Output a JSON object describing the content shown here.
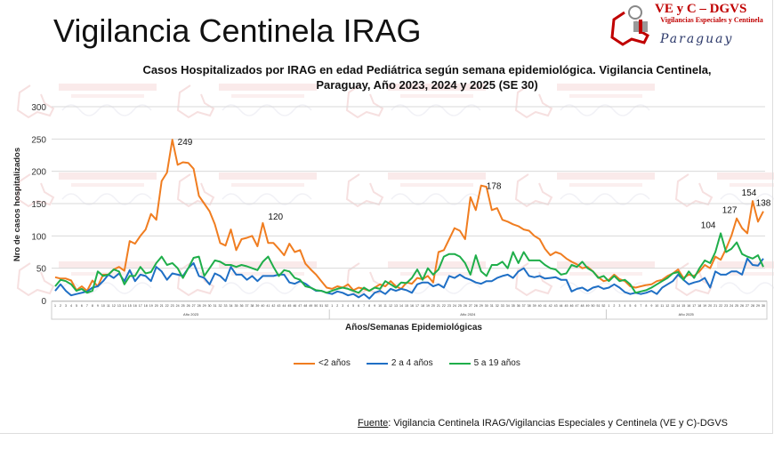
{
  "header": {
    "title": "Vigilancia Centinela IRAG",
    "logo": {
      "line1": "VE y C – DGVS",
      "line2": "Vigilancias Especiales y Centinela",
      "line3": "Paraguay"
    }
  },
  "watermark": "VE y C – DGVS",
  "source": {
    "label": "Fuente",
    "text": ": Vigilancia  Centinela IRAG/Vigilancias Especiales y Centinela (VE y C)-DGVS"
  },
  "chart_data": {
    "type": "line",
    "title": "Casos Hospitalizados por IRAG en edad Pediátrica según semana epidemiológica. Vigilancia Centinela, Paraguay, Año 2023, 2024 y 2025 (SE 30)",
    "xlabel": "Años/Semanas Epidemiológicas",
    "ylabel": "Nro de casos hospitalizados",
    "ylim": [
      0,
      300
    ],
    "yticks": [
      0,
      50,
      100,
      150,
      200,
      250,
      300
    ],
    "grid": true,
    "legend_position": "bottom",
    "years": [
      {
        "label": "Año 2023",
        "weeks": 52
      },
      {
        "label": "Año 2024",
        "weeks": 52
      },
      {
        "label": "Año 2025",
        "weeks": 30
      }
    ],
    "series": [
      {
        "name": "<2  años",
        "color": "#f07d20",
        "values": [
          36,
          34,
          34,
          31,
          16,
          22,
          15,
          31,
          22,
          40,
          40,
          48,
          52,
          46,
          92,
          88,
          100,
          110,
          134,
          125,
          185,
          198,
          249,
          210,
          214,
          213,
          204,
          162,
          150,
          138,
          118,
          89,
          85,
          110,
          78,
          95,
          97,
          100,
          84,
          120,
          89,
          89,
          80,
          70,
          88,
          75,
          78,
          57,
          48,
          40,
          30,
          20,
          18,
          22,
          20,
          25,
          16,
          20,
          18,
          15,
          20,
          25,
          22,
          30,
          22,
          18,
          28,
          26,
          35,
          33,
          38,
          28,
          75,
          78,
          95,
          112,
          108,
          95,
          160,
          140,
          178,
          176,
          140,
          143,
          125,
          122,
          118,
          115,
          110,
          108,
          100,
          95,
          80,
          70,
          75,
          72,
          65,
          60,
          56,
          50,
          52,
          45,
          36,
          30,
          32,
          40,
          33,
          30,
          22,
          20,
          22,
          24,
          25,
          30,
          32,
          38,
          42,
          48,
          35,
          40,
          38,
          45,
          55,
          50,
          68,
          63,
          80,
          100,
          127,
          112,
          104,
          154,
          122,
          138
        ],
        "labels": {
          "22": 249,
          "39": 120,
          "80": 178,
          "128": 127,
          "131": 154,
          "133": 138
        }
      },
      {
        "name": "2 a 4 años",
        "color": "#1f6fc5",
        "values": [
          15,
          25,
          15,
          8,
          10,
          12,
          14,
          20,
          22,
          30,
          40,
          35,
          42,
          30,
          47,
          30,
          40,
          38,
          30,
          52,
          45,
          32,
          42,
          40,
          38,
          50,
          58,
          38,
          35,
          25,
          42,
          38,
          30,
          52,
          40,
          40,
          32,
          38,
          30,
          38,
          38,
          38,
          40,
          40,
          28,
          26,
          30,
          26,
          20,
          15,
          15,
          12,
          10,
          14,
          12,
          8,
          10,
          5,
          10,
          3,
          12,
          15,
          10,
          18,
          15,
          18,
          16,
          12,
          25,
          28,
          28,
          22,
          25,
          20,
          38,
          35,
          40,
          35,
          32,
          28,
          26,
          30,
          30,
          35,
          38,
          40,
          35,
          45,
          50,
          38,
          36,
          38,
          34,
          35,
          36,
          32,
          32,
          14,
          18,
          20,
          15,
          20,
          22,
          18,
          20,
          25,
          20,
          13,
          10,
          12,
          10,
          12,
          15,
          10,
          20,
          25,
          30,
          40,
          32,
          25,
          28,
          30,
          35,
          20,
          45,
          40,
          40,
          45,
          45,
          40,
          65,
          55,
          54,
          65
        ],
        "labels": {}
      },
      {
        "name": "5 a 19 años",
        "color": "#1fae4a",
        "values": [
          22,
          32,
          30,
          25,
          15,
          18,
          12,
          15,
          45,
          38,
          40,
          48,
          45,
          25,
          38,
          38,
          52,
          42,
          44,
          58,
          68,
          55,
          58,
          50,
          35,
          50,
          66,
          68,
          38,
          50,
          62,
          60,
          55,
          55,
          52,
          55,
          53,
          50,
          47,
          60,
          68,
          52,
          38,
          47,
          45,
          35,
          32,
          22,
          20,
          16,
          15,
          12,
          15,
          18,
          20,
          18,
          15,
          12,
          20,
          15,
          20,
          18,
          30,
          25,
          20,
          28,
          27,
          35,
          48,
          32,
          50,
          40,
          48,
          68,
          72,
          72,
          68,
          58,
          40,
          70,
          45,
          38,
          55,
          55,
          60,
          50,
          75,
          58,
          75,
          62,
          62,
          62,
          55,
          50,
          48,
          40,
          42,
          55,
          52,
          60,
          50,
          45,
          35,
          38,
          30,
          38,
          30,
          32,
          25,
          12,
          14,
          16,
          20,
          25,
          30,
          35,
          42,
          44,
          32,
          45,
          35,
          50,
          62,
          58,
          75,
          104,
          75,
          80,
          90,
          72,
          68,
          65,
          70,
          52
        ],
        "labels": {
          "125": 104
        }
      }
    ]
  }
}
